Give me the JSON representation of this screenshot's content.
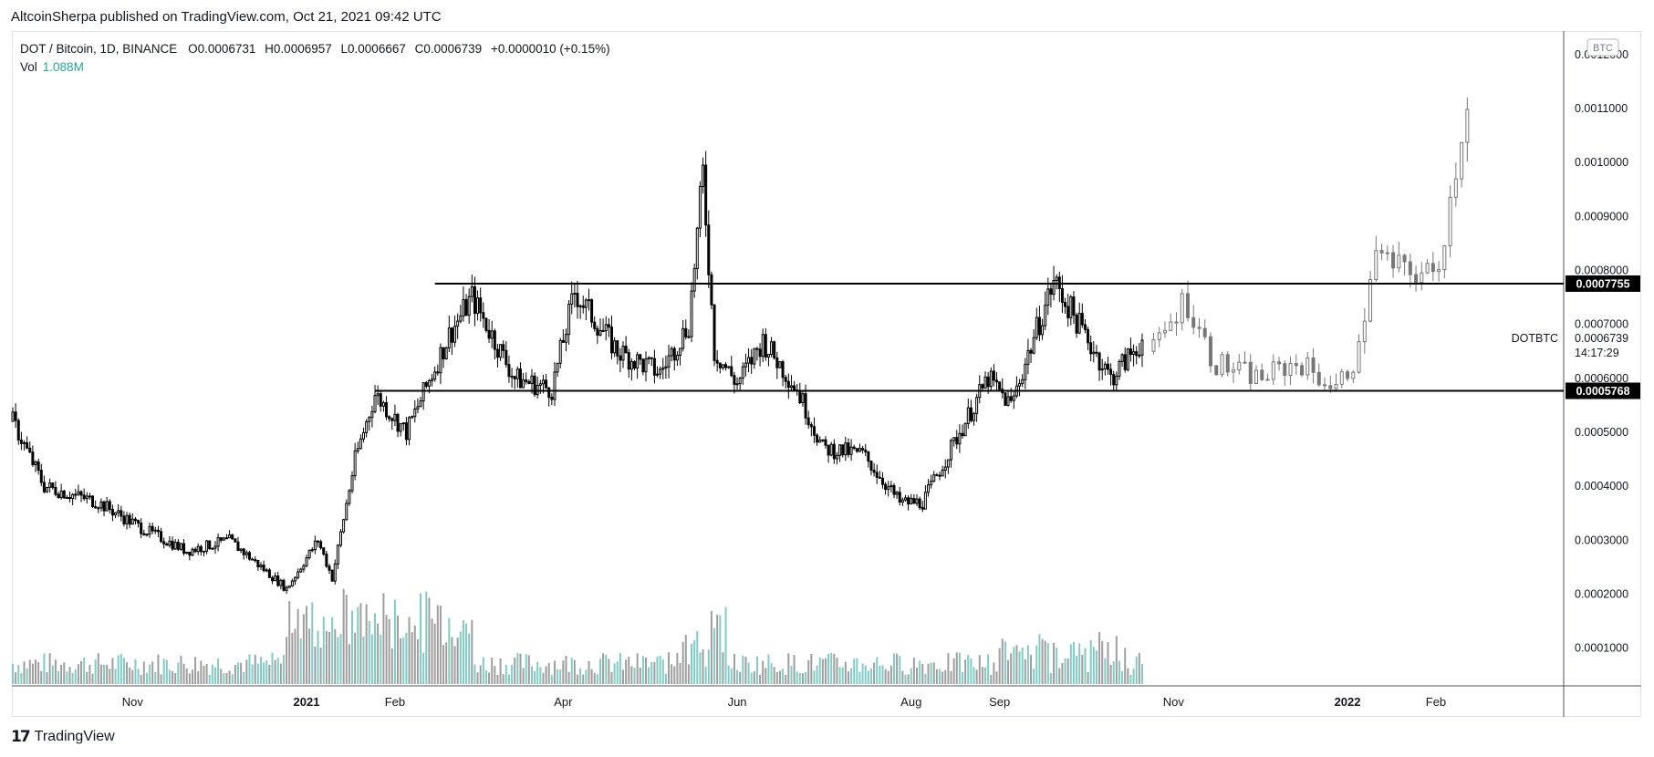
{
  "header": {
    "credit": "AltcoinSherpa published on TradingView.com, Oct 21, 2021 09:42 UTC"
  },
  "legend": {
    "symbol": "DOT / Bitcoin, 1D, BINANCE",
    "o_label": "O",
    "o_value": "0.0006731",
    "h_label": "H",
    "h_value": "0.0006957",
    "l_label": "L",
    "l_value": "0.0006667",
    "c_label": "C",
    "c_value": "0.0006739",
    "change": "+0.0000010 (+0.15%)",
    "vol_label": "Vol",
    "vol_value": "1.088M"
  },
  "footer": {
    "brand": "TradingView"
  },
  "price_axis": {
    "currency_badge": "BTC",
    "symbol_tag": "DOTBTC",
    "current_price": "0.0006739",
    "countdown": "14:17:29"
  },
  "colors": {
    "candle": "#000000",
    "candle_projection": "#777777",
    "volume_up": "#80cbc4",
    "volume_down": "#9e9e9e",
    "hline": "#000000",
    "axis_text": "#131722",
    "grid_border": "#e0e3eb"
  },
  "chart_data": {
    "type": "candlestick",
    "title": "DOT / Bitcoin, 1D, BINANCE",
    "y_axis": {
      "ticks": [
        "0.0012000",
        "0.0011000",
        "0.0010000",
        "0.0009000",
        "0.0008000",
        "0.0007000",
        "0.0006000",
        "0.0005000",
        "0.0004000",
        "0.0003000",
        "0.0002000",
        "0.0001000"
      ],
      "range": [
        3e-05,
        0.00122
      ]
    },
    "x_axis": {
      "ticks": [
        {
          "label": "Nov",
          "date": "2020-11-01",
          "bold": false
        },
        {
          "label": "2021",
          "date": "2021-01-01",
          "bold": true
        },
        {
          "label": "Feb",
          "date": "2021-02-01",
          "bold": false
        },
        {
          "label": "Apr",
          "date": "2021-04-01",
          "bold": false
        },
        {
          "label": "Jun",
          "date": "2021-06-01",
          "bold": false
        },
        {
          "label": "Aug",
          "date": "2021-08-01",
          "bold": false
        },
        {
          "label": "Sep",
          "date": "2021-09-01",
          "bold": false
        },
        {
          "label": "Nov",
          "date": "2021-11-01",
          "bold": false
        },
        {
          "label": "2022",
          "date": "2022-01-01",
          "bold": true
        },
        {
          "label": "Feb",
          "date": "2022-02-01",
          "bold": false
        }
      ]
    },
    "horizontal_levels": [
      {
        "value": 0.0007755,
        "label": "0.0007755",
        "from_date": "2021-02-15"
      },
      {
        "value": 0.0005768,
        "label": "0.0005768",
        "from_date": "2021-01-25"
      }
    ],
    "price_path": {
      "description_points": [
        [
          "2020-09-20",
          0.00052
        ],
        [
          "2020-10-01",
          0.0004
        ],
        [
          "2020-10-20",
          0.00037
        ],
        [
          "2020-11-05",
          0.00032
        ],
        [
          "2020-11-20",
          0.00028
        ],
        [
          "2020-12-05",
          0.0003
        ],
        [
          "2020-12-25",
          0.00021
        ],
        [
          "2021-01-05",
          0.0003
        ],
        [
          "2021-01-10",
          0.00023
        ],
        [
          "2021-01-18",
          0.00045
        ],
        [
          "2021-01-25",
          0.00057
        ],
        [
          "2021-02-05",
          0.0005
        ],
        [
          "2021-02-20",
          0.00068
        ],
        [
          "2021-02-28",
          0.00075
        ],
        [
          "2021-03-15",
          0.0006
        ],
        [
          "2021-03-28",
          0.00058
        ],
        [
          "2021-04-05",
          0.00076
        ],
        [
          "2021-04-20",
          0.00065
        ],
        [
          "2021-05-05",
          0.00061
        ],
        [
          "2021-05-15",
          0.0007
        ],
        [
          "2021-05-20",
          0.00098
        ],
        [
          "2021-05-24",
          0.00065
        ],
        [
          "2021-06-01",
          0.00059
        ],
        [
          "2021-06-10",
          0.00067
        ],
        [
          "2021-06-22",
          0.00058
        ],
        [
          "2021-07-01",
          0.00047
        ],
        [
          "2021-07-15",
          0.00046
        ],
        [
          "2021-07-28",
          0.00037
        ],
        [
          "2021-08-05",
          0.00037
        ],
        [
          "2021-08-15",
          0.00047
        ],
        [
          "2021-08-28",
          0.0006
        ],
        [
          "2021-09-05",
          0.00055
        ],
        [
          "2021-09-12",
          0.00066
        ],
        [
          "2021-09-20",
          0.00078
        ],
        [
          "2021-10-01",
          0.00068
        ],
        [
          "2021-10-10",
          0.0006
        ],
        [
          "2021-10-21",
          0.00067
        ]
      ],
      "projection_points": [
        [
          "2021-10-25",
          0.00065
        ],
        [
          "2021-11-05",
          0.00075
        ],
        [
          "2021-11-15",
          0.00063
        ],
        [
          "2021-12-01",
          0.0006
        ],
        [
          "2021-12-15",
          0.00063
        ],
        [
          "2021-12-28",
          0.00058
        ],
        [
          "2022-01-05",
          0.00065
        ],
        [
          "2022-01-10",
          0.00083
        ],
        [
          "2022-01-20",
          0.0008
        ],
        [
          "2022-02-01",
          0.00079
        ],
        [
          "2022-02-05",
          0.0009
        ],
        [
          "2022-02-12",
          0.00112
        ]
      ]
    },
    "volume": {
      "peak_date": "2021-05-20",
      "end_date": "2021-10-21"
    }
  }
}
